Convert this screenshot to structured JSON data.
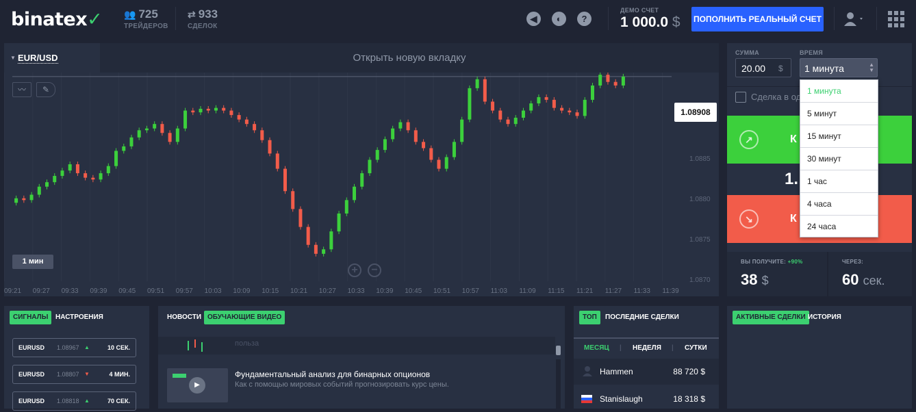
{
  "header": {
    "logo": "binatex",
    "traders": {
      "count": "725",
      "label": "ТРЕЙДЕРОВ"
    },
    "deals": {
      "count": "933",
      "label": "СДЕЛОК"
    },
    "demo_label": "ДЕМО СЧЕТ",
    "demo_balance": "1 000.0",
    "demo_currency": "$",
    "topup_button": "ПОПОЛНИТЬ РЕАЛЬНЫЙ СЧЕТ",
    "icons": [
      "sound-icon",
      "contrast-icon",
      "help-icon",
      "user-icon",
      "grid-menu-icon"
    ]
  },
  "chart": {
    "pair": "EUR/USD",
    "new_tab": "Открыть новую вкладку",
    "current_price": "1.08908",
    "timeframe_button": "1 мин",
    "y_labels": [
      "1.0885",
      "1.0880",
      "1.0875",
      "1.0870"
    ],
    "x_labels": [
      "09:21",
      "09:27",
      "09:33",
      "09:39",
      "09:45",
      "09:51",
      "09:57",
      "10:03",
      "10:09",
      "10:15",
      "10:21",
      "10:27",
      "10:33",
      "10:39",
      "10:45",
      "10:51",
      "10:57",
      "11:03",
      "11:09",
      "11:15",
      "11:21",
      "11:27",
      "11:33",
      "11:39"
    ]
  },
  "chart_data": {
    "type": "candlestick",
    "xlabel": "",
    "ylabel": "",
    "ylim": [
      1.0869,
      1.0894
    ],
    "up_color": "#3cd03c",
    "down_color": "#f25c4a",
    "close": [
      1.08772,
      1.0877,
      1.08776,
      1.08785,
      1.0879,
      1.08797,
      1.08803,
      1.0881,
      1.088,
      1.08795,
      1.08793,
      1.088,
      1.08808,
      1.08825,
      1.0883,
      1.0884,
      1.08848,
      1.0885,
      1.08855,
      1.08845,
      1.08835,
      1.0885,
      1.0887,
      1.08868,
      1.08872,
      1.0887,
      1.08873,
      1.0887,
      1.08865,
      1.0886,
      1.08855,
      1.08848,
      1.08837,
      1.08822,
      1.08805,
      1.0878,
      1.0876,
      1.0874,
      1.0872,
      1.0871,
      1.08715,
      1.08735,
      1.08755,
      1.0877,
      1.08785,
      1.088,
      1.08815,
      1.08826,
      1.08838,
      1.0885,
      1.08857,
      1.08848,
      1.08835,
      1.08828,
      1.08815,
      1.08805,
      1.08818,
      1.08835,
      1.0886,
      1.08895,
      1.08905,
      1.0888,
      1.0887,
      1.0886,
      1.08855,
      1.08862,
      1.0887,
      1.08878,
      1.08885,
      1.08882,
      1.08873,
      1.0887,
      1.08868,
      1.08864,
      1.08882,
      1.08898,
      1.0891,
      1.08902,
      1.08898,
      1.08908
    ]
  },
  "trade_panel": {
    "amount_label": "СУММА",
    "amount_value": "20.00",
    "amount_currency": "$",
    "time_label": "ВРЕМЯ",
    "time_value": "1 минута",
    "checkbox_text": "Сделка в од",
    "call_label": "К",
    "put_label": "К",
    "payout_mid": "1.",
    "receive_label": "ВЫ ПОЛУЧИТЕ:",
    "receive_pct": "+90%",
    "receive_value": "38",
    "receive_currency": "$",
    "through_label": "ЧЕРЕЗ:",
    "through_value": "60",
    "through_unit": "сек."
  },
  "time_dropdown": {
    "options": [
      "1 минута",
      "5 минут",
      "15 минут",
      "30 минут",
      "1 час",
      "4 часа",
      "24 часа"
    ],
    "selected": "1 минута"
  },
  "signals": {
    "tab_active": "СИГНАЛЫ",
    "tab_other": "НАСТРОЕНИЯ",
    "rows": [
      {
        "pair": "EURUSD",
        "price": "1.08967",
        "dir": "up",
        "time": "10 СЕК."
      },
      {
        "pair": "EURUSD",
        "price": "1.08807",
        "dir": "down",
        "time": "4 МИН."
      },
      {
        "pair": "EURUSD",
        "price": "1.08818",
        "dir": "up",
        "time": "70 СЕК."
      }
    ]
  },
  "news": {
    "tab_news": "НОВОСТИ",
    "tab_videos": "ОБУЧАЮЩИЕ ВИДЕО",
    "partial_text": "польза",
    "item_title": "Фундаментальный анализ для бинарных опционов",
    "item_desc": "Как с помощью мировых событий прогнозировать курс цены."
  },
  "top_trades": {
    "tab_top": "ТОП",
    "tab_last": "ПОСЛЕДНИЕ СДЕЛКИ",
    "periods": [
      "МЕСЯЦ",
      "НЕДЕЛЯ",
      "СУТКИ"
    ],
    "rows": [
      {
        "name": "Hammen",
        "amount": "88 720 $"
      },
      {
        "name": "Stanislaugh",
        "amount": "18 318 $"
      }
    ]
  },
  "active": {
    "tab_active": "АКТИВНЫЕ СДЕЛКИ",
    "tab_history": "ИСТОРИЯ"
  }
}
